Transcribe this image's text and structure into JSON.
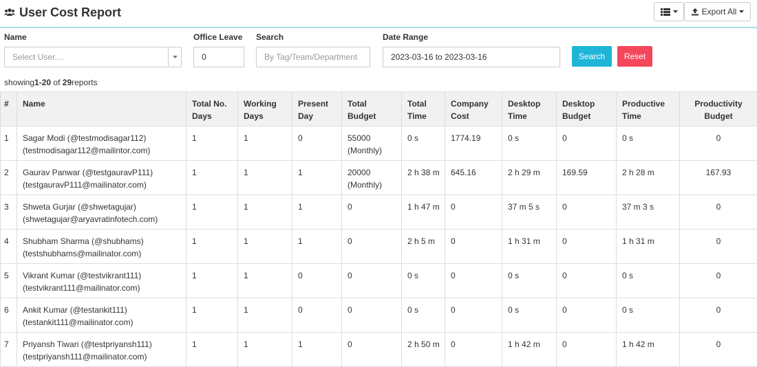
{
  "header": {
    "title": "User Cost Report",
    "export_button": "Export All"
  },
  "filters": {
    "name": {
      "label": "Name",
      "placeholder": "Select User...."
    },
    "office_leave": {
      "label": "Office Leave",
      "value": "0"
    },
    "search": {
      "label": "Search",
      "placeholder": "By Tag/Team/Department"
    },
    "date_range": {
      "label": "Date Range",
      "value": "2023-03-16 to 2023-03-16"
    },
    "search_button": "Search",
    "reset_button": "Reset"
  },
  "summary": {
    "prefix": "showing",
    "range": "1-20",
    "of": "of",
    "total": "29",
    "suffix": "reports"
  },
  "table": {
    "columns": [
      "#",
      "Name",
      "Total No. Days",
      "Working Days",
      "Present Day",
      "Total Budget",
      "Total Time",
      "Company Cost",
      "Desktop Time",
      "Desktop Budget",
      "Productive Time",
      "Productivity Budget"
    ],
    "rows": [
      [
        [
          "1"
        ],
        [
          "Sagar Modi (@testmodisagar112)",
          "(testmodisagar112@mailintor.com)"
        ],
        [
          "1"
        ],
        [
          "1"
        ],
        [
          "0"
        ],
        [
          "55000",
          "(Monthly)"
        ],
        [
          "0 s"
        ],
        [
          "1774.19"
        ],
        [
          "0 s"
        ],
        [
          "0"
        ],
        [
          "0 s"
        ],
        [
          "0"
        ]
      ],
      [
        [
          "2"
        ],
        [
          "Gaurav Panwar (@testgauravP111)",
          "(testgauravP111@mailinator.com)"
        ],
        [
          "1"
        ],
        [
          "1"
        ],
        [
          "1"
        ],
        [
          "20000",
          "(Monthly)"
        ],
        [
          "2 h 38 m"
        ],
        [
          "645.16"
        ],
        [
          "2 h 29 m"
        ],
        [
          "169.59"
        ],
        [
          "2 h 28 m"
        ],
        [
          "167.93"
        ]
      ],
      [
        [
          "3"
        ],
        [
          "Shweta Gurjar (@shwetagujar)",
          "(shwetagujar@aryavratinfotech.com)"
        ],
        [
          "1"
        ],
        [
          "1"
        ],
        [
          "1"
        ],
        [
          "0"
        ],
        [
          "1 h 47 m"
        ],
        [
          "0"
        ],
        [
          "37 m 5 s"
        ],
        [
          "0"
        ],
        [
          "37 m 3 s"
        ],
        [
          "0"
        ]
      ],
      [
        [
          "4"
        ],
        [
          "Shubham Sharma (@shubhams)",
          "(testshubhams@mailinator.com)"
        ],
        [
          "1"
        ],
        [
          "1"
        ],
        [
          "1"
        ],
        [
          "0"
        ],
        [
          "2 h 5 m"
        ],
        [
          "0"
        ],
        [
          "1 h 31 m"
        ],
        [
          "0"
        ],
        [
          "1 h 31 m"
        ],
        [
          "0"
        ]
      ],
      [
        [
          "5"
        ],
        [
          "Vikrant Kumar (@testvikrant111)",
          "(testvikrant111@mailinator.com)"
        ],
        [
          "1"
        ],
        [
          "1"
        ],
        [
          "0"
        ],
        [
          "0"
        ],
        [
          "0 s"
        ],
        [
          "0"
        ],
        [
          "0 s"
        ],
        [
          "0"
        ],
        [
          "0 s"
        ],
        [
          "0"
        ]
      ],
      [
        [
          "6"
        ],
        [
          "Ankit Kumar (@testankit111)",
          "(testankit111@mailinator.com)"
        ],
        [
          "1"
        ],
        [
          "1"
        ],
        [
          "0"
        ],
        [
          "0"
        ],
        [
          "0 s"
        ],
        [
          "0"
        ],
        [
          "0 s"
        ],
        [
          "0"
        ],
        [
          "0 s"
        ],
        [
          "0"
        ]
      ],
      [
        [
          "7"
        ],
        [
          "Priyansh Tiwari (@testpriyansh111)",
          "(testpriyansh111@mailinator.com)"
        ],
        [
          "1"
        ],
        [
          "1"
        ],
        [
          "1"
        ],
        [
          "0"
        ],
        [
          "2 h 50 m"
        ],
        [
          "0"
        ],
        [
          "1 h 42 m"
        ],
        [
          "0"
        ],
        [
          "1 h 42 m"
        ],
        [
          "0"
        ]
      ]
    ]
  }
}
